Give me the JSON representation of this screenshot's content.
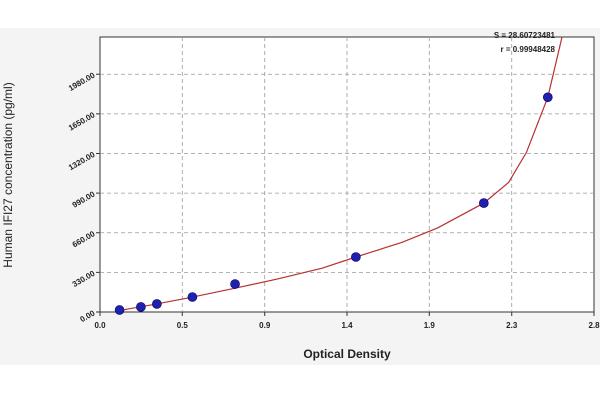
{
  "chart_data": {
    "type": "scatter",
    "x_label": "Optical Density",
    "y_label": "Human IFI27 concentration (pg/ml)",
    "annotations": [
      "S = 28.60723481",
      "r = 0.99948428"
    ],
    "series": [
      {
        "color": "#2020b0",
        "x": [
          0.11,
          0.23,
          0.32,
          0.52,
          0.76,
          1.44,
          2.16,
          2.52
        ],
        "values": [
          17,
          42,
          67,
          125,
          233,
          458,
          907,
          1788
        ]
      }
    ],
    "fit": {
      "color": "#b83030",
      "x": [
        0.12,
        0.3,
        0.5,
        0.75,
        1.0,
        1.25,
        1.44,
        1.7,
        1.9,
        2.16,
        2.3,
        2.4,
        2.52,
        2.6
      ],
      "values": [
        15,
        62,
        118,
        195,
        275,
        365,
        458,
        580,
        700,
        907,
        1080,
        1330,
        1788,
        2290
      ]
    },
    "xlim": [
      0,
      2.78
    ],
    "xticks": [
      {
        "value": 0,
        "label": "0.0"
      },
      {
        "value": 0.463,
        "label": "0.5"
      },
      {
        "value": 0.927,
        "label": "0.9"
      },
      {
        "value": 1.39,
        "label": "1.4"
      },
      {
        "value": 1.853,
        "label": "1.9"
      },
      {
        "value": 2.317,
        "label": "2.3"
      },
      {
        "value": 2.78,
        "label": "2.8"
      }
    ],
    "ylim": [
      0,
      2290
    ],
    "yticks": [
      {
        "value": 0,
        "label": "0.00"
      },
      {
        "value": 330,
        "label": "330.00"
      },
      {
        "value": 660,
        "label": "660.00"
      },
      {
        "value": 990,
        "label": "990.00"
      },
      {
        "value": 1320,
        "label": "1320.00"
      },
      {
        "value": 1650,
        "label": "1650.00"
      },
      {
        "value": 1980,
        "label": "1980.00"
      }
    ],
    "grid": true
  }
}
